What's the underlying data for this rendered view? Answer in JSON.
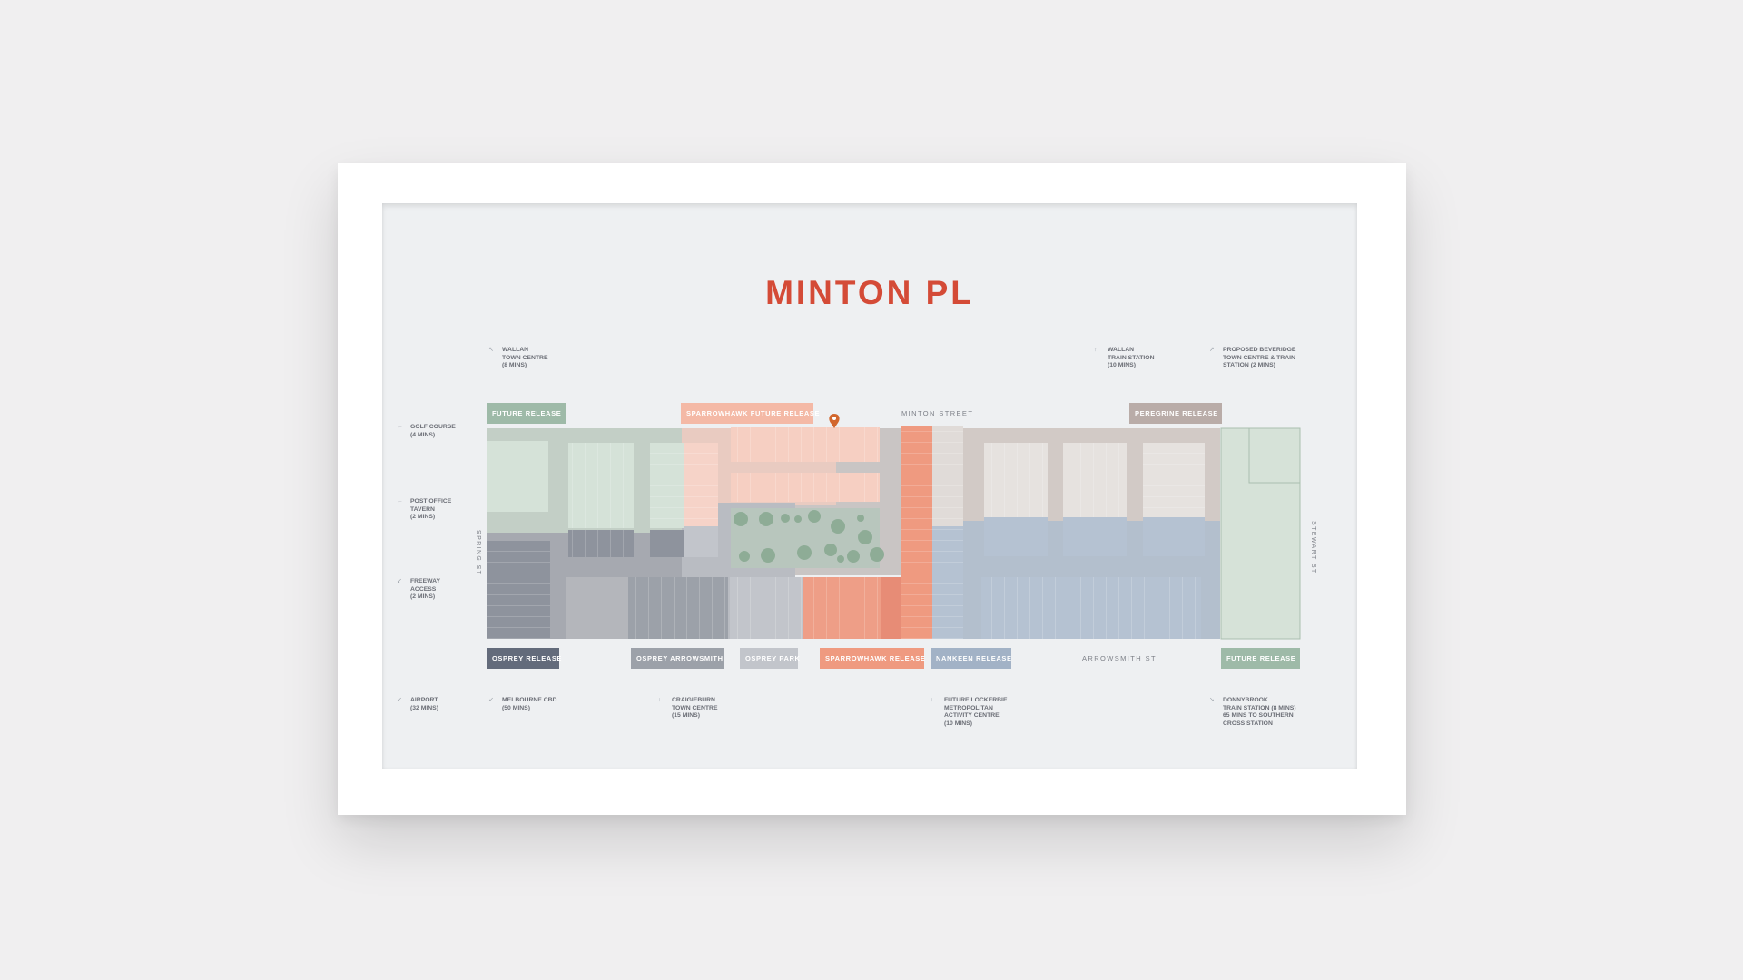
{
  "logo": "MINTON PL",
  "streets": {
    "top": "MINTON STREET",
    "bottom": "ARROWSMITH ST",
    "left": "SPRING ST",
    "right": "STEWART ST"
  },
  "releases": {
    "top_left_future": "FUTURE RELEASE",
    "sparrowhawk_future": "SPARROWHAWK FUTURE RELEASE",
    "peregrine": "PEREGRINE RELEASE",
    "osprey": "OSPREY RELEASE",
    "osprey_arrowsmith": "OSPREY ARROWSMITH",
    "osprey_park": "OSPREY PARK",
    "sparrowhawk": "SPARROWHAWK RELEASE",
    "nankeen": "NANKEEN RELEASE",
    "bottom_right_future": "FUTURE RELEASE"
  },
  "destinations": {
    "wallan_town": {
      "arrow": "↖",
      "text": "WALLAN\nTOWN CENTRE\n(8 MINS)"
    },
    "wallan_station": {
      "arrow": "↑",
      "text": "WALLAN\nTRAIN STATION\n(10 MINS)"
    },
    "beveridge": {
      "arrow": "↗",
      "text": "PROPOSED BEVERIDGE\nTOWN CENTRE & TRAIN\nSTATION (2 MINS)"
    },
    "golf": {
      "arrow": "←",
      "text": "GOLF COURSE\n(4 MINS)"
    },
    "post_office": {
      "arrow": "←",
      "text": "POST OFFICE\nTAVERN\n(2 MINS)"
    },
    "freeway": {
      "arrow": "↙",
      "text": "FREEWAY\nACCESS\n(2 MINS)"
    },
    "airport": {
      "arrow": "↙",
      "text": "AIRPORT\n(32 MINS)"
    },
    "melbourne": {
      "arrow": "↙",
      "text": "MELBOURNE CBD\n(50 MINS)"
    },
    "craigieburn": {
      "arrow": "↓",
      "text": "CRAIGIEBURN\nTOWN CENTRE\n(15 MINS)"
    },
    "lockerbie": {
      "arrow": "↓",
      "text": "FUTURE LOCKERBIE\nMETROPOLITAN\nACTIVITY CENTRE\n(10 MINS)"
    },
    "donnybrook": {
      "arrow": "↘",
      "text": "DONNYBROOK\nTRAIN STATION (8 MINS)\n65 MINS TO SOUTHERN\nCROSS STATION"
    }
  },
  "colors": {
    "logo": "#d44b37",
    "future_green": "#9ebaa8",
    "sparrowhawk_coral": "#ef9a80",
    "sparrowhawk_future_peach": "#f4b9a6",
    "peregrine_taupe": "#b9aca8",
    "osprey_slate": "#636b7b",
    "osprey_arrowsmith_grey": "#9ca1a9",
    "osprey_park_lightgrey": "#c2c5cb",
    "nankeen_blue": "#a2b2c6",
    "location_pin": "#d2672e"
  },
  "icons": [
    "location-pin-icon",
    "arrow-icon"
  ]
}
